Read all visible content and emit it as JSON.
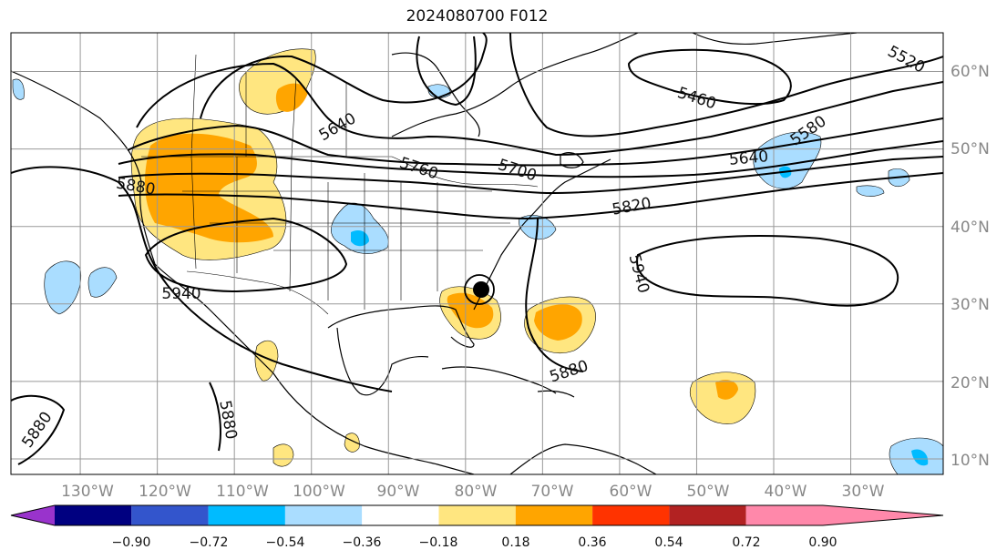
{
  "title": "2024080700 F012",
  "lat_labels": [
    "60°N",
    "50°N",
    "40°N",
    "30°N",
    "20°N",
    "10°N"
  ],
  "lon_labels": [
    "130°W",
    "120°W",
    "110°W",
    "100°W",
    "90°W",
    "80°W",
    "70°W",
    "60°W",
    "50°W",
    "40°W",
    "30°W"
  ],
  "contour_labels": [
    "5520",
    "5460",
    "5580",
    "5640",
    "5640",
    "5700",
    "5760",
    "5820",
    "5880",
    "5880",
    "5880",
    "5880",
    "5940",
    "5940"
  ],
  "colorbar": {
    "ticks": [
      "−0.90",
      "−0.72",
      "−0.54",
      "−0.36",
      "−0.18",
      "0.18",
      "0.36",
      "0.54",
      "0.72",
      "0.90"
    ],
    "under_color": "#9933cc",
    "over_color": "#ff88aa",
    "colors": [
      "#9933cc",
      "#000080",
      "#3355cc",
      "#00bbff",
      "#aaddff",
      "#ffffff",
      "#ffe680",
      "#ffa500",
      "#ff3300",
      "#b22222",
      "#ff88aa"
    ]
  },
  "colors": {
    "positive_weak": "#ffe680",
    "positive_mid": "#ffa500",
    "positive_strong": "#ff3300",
    "negative_weak": "#aaddff",
    "negative_mid": "#00bbff"
  },
  "map": {
    "type": "geopotential-height-anomaly",
    "extent": {
      "lon_min": -139,
      "lon_max": -18,
      "lat_min": 8,
      "lat_max": 65
    },
    "grid_lons": [
      -130,
      -120,
      -110,
      -100,
      -90,
      -80,
      -70,
      -60,
      -50,
      -40,
      -30
    ],
    "grid_lats": [
      10,
      20,
      30,
      40,
      50,
      60
    ],
    "storm_marker": {
      "name": "tropical-cyclone-symbol",
      "lon": -80.5,
      "lat": 32
    }
  }
}
